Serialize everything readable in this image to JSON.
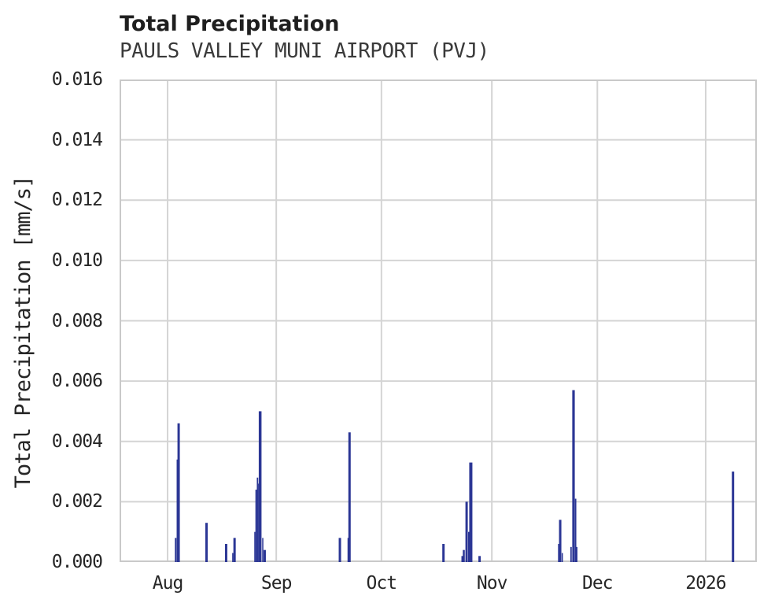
{
  "header": {
    "title": "Total Precipitation",
    "subtitle": "PAULS VALLEY MUNI AIRPORT (PVJ)"
  },
  "colors": {
    "bar": "#2b3695",
    "grid": "#d4d4d4",
    "spine": "#c9c9c9",
    "title_text": "#1f1f1f",
    "subtitle_text": "#3a3a3a",
    "tick_text": "#262626",
    "background": "#ffffff"
  },
  "chart_data": {
    "type": "bar",
    "title": "Total Precipitation",
    "subtitle": "PAULS VALLEY MUNI AIRPORT (PVJ)",
    "xlabel": "",
    "ylabel": "Total Precipitation [mm/s]",
    "ylim": [
      0,
      0.016
    ],
    "grid": true,
    "legend": false,
    "yticks": [
      {
        "label": "0.000",
        "value": 0.0
      },
      {
        "label": "0.002",
        "value": 0.002
      },
      {
        "label": "0.004",
        "value": 0.004
      },
      {
        "label": "0.006",
        "value": 0.006
      },
      {
        "label": "0.008",
        "value": 0.008
      },
      {
        "label": "0.010",
        "value": 0.01
      },
      {
        "label": "0.012",
        "value": 0.012
      },
      {
        "label": "0.014",
        "value": 0.014
      },
      {
        "label": "0.016",
        "value": 0.016
      }
    ],
    "x_axis": {
      "span_days": 181.8,
      "ticks": [
        {
          "label": "Aug",
          "day": 13.7
        },
        {
          "label": "Sep",
          "day": 44.7
        },
        {
          "label": "Oct",
          "day": 74.7
        },
        {
          "label": "Nov",
          "day": 106.2
        },
        {
          "label": "Dec",
          "day": 136.3
        },
        {
          "label": "2026",
          "day": 167.2
        }
      ]
    },
    "series": [
      {
        "name": "Total Precipitation [mm/s]",
        "points": [
          {
            "date": "Aug 3",
            "day": 16.0,
            "value": 0.0008,
            "w": 0.45
          },
          {
            "date": "Aug 3",
            "day": 16.45,
            "value": 0.0034,
            "w": 0.34
          },
          {
            "date": "Aug 4",
            "day": 16.85,
            "value": 0.0046,
            "w": 0.67
          },
          {
            "date": "Aug 12",
            "day": 24.8,
            "value": 0.0013,
            "w": 0.67
          },
          {
            "date": "Aug 17",
            "day": 30.4,
            "value": 0.0006,
            "w": 0.67
          },
          {
            "date": "Aug 19",
            "day": 32.3,
            "value": 0.0003,
            "w": 0.34
          },
          {
            "date": "Aug 20",
            "day": 32.8,
            "value": 0.0008,
            "w": 0.67
          },
          {
            "date": "Aug 26",
            "day": 38.6,
            "value": 0.001,
            "w": 0.34
          },
          {
            "date": "Aug 26",
            "day": 38.95,
            "value": 0.0024,
            "w": 0.4
          },
          {
            "date": "Aug 26",
            "day": 39.35,
            "value": 0.0028,
            "w": 0.4
          },
          {
            "date": "Aug 27",
            "day": 39.7,
            "value": 0.0026,
            "w": 0.34
          },
          {
            "date": "Aug 27",
            "day": 40.1,
            "value": 0.005,
            "w": 0.79
          },
          {
            "date": "Aug 27",
            "day": 40.85,
            "value": 0.0008,
            "w": 0.34
          },
          {
            "date": "Aug 28",
            "day": 41.4,
            "value": 0.0004,
            "w": 0.67
          },
          {
            "date": "Sep 19",
            "day": 62.85,
            "value": 0.0008,
            "w": 0.67
          },
          {
            "date": "Sep 21",
            "day": 65.2,
            "value": 0.0008,
            "w": 0.34
          },
          {
            "date": "Sep 22",
            "day": 65.6,
            "value": 0.0043,
            "w": 0.67
          },
          {
            "date": "Oct 18",
            "day": 92.4,
            "value": 0.0006,
            "w": 0.67
          },
          {
            "date": "Oct 24",
            "day": 97.75,
            "value": 0.0002,
            "w": 0.45
          },
          {
            "date": "Oct 24",
            "day": 98.2,
            "value": 0.0004,
            "w": 0.56
          },
          {
            "date": "Oct 25",
            "day": 99.0,
            "value": 0.002,
            "w": 0.67
          },
          {
            "date": "Oct 26",
            "day": 99.6,
            "value": 0.001,
            "w": 0.34
          },
          {
            "date": "Oct 26",
            "day": 100.2,
            "value": 0.0033,
            "w": 0.9
          },
          {
            "date": "Oct 28",
            "day": 102.7,
            "value": 0.0002,
            "w": 0.67
          },
          {
            "date": "Nov 19",
            "day": 125.25,
            "value": 0.0006,
            "w": 0.34
          },
          {
            "date": "Nov 19",
            "day": 125.7,
            "value": 0.0014,
            "w": 0.67
          },
          {
            "date": "Nov 20",
            "day": 126.3,
            "value": 0.0003,
            "w": 0.34
          },
          {
            "date": "Nov 23",
            "day": 128.8,
            "value": 0.0005,
            "w": 0.4
          },
          {
            "date": "Nov 23",
            "day": 129.5,
            "value": 0.0057,
            "w": 0.72
          },
          {
            "date": "Nov 23",
            "day": 130.1,
            "value": 0.0021,
            "w": 0.4
          },
          {
            "date": "Nov 24",
            "day": 130.45,
            "value": 0.0005,
            "w": 0.34
          },
          {
            "date": "Jan 8",
            "day": 175.0,
            "value": 0.003,
            "w": 0.67
          }
        ]
      }
    ]
  }
}
